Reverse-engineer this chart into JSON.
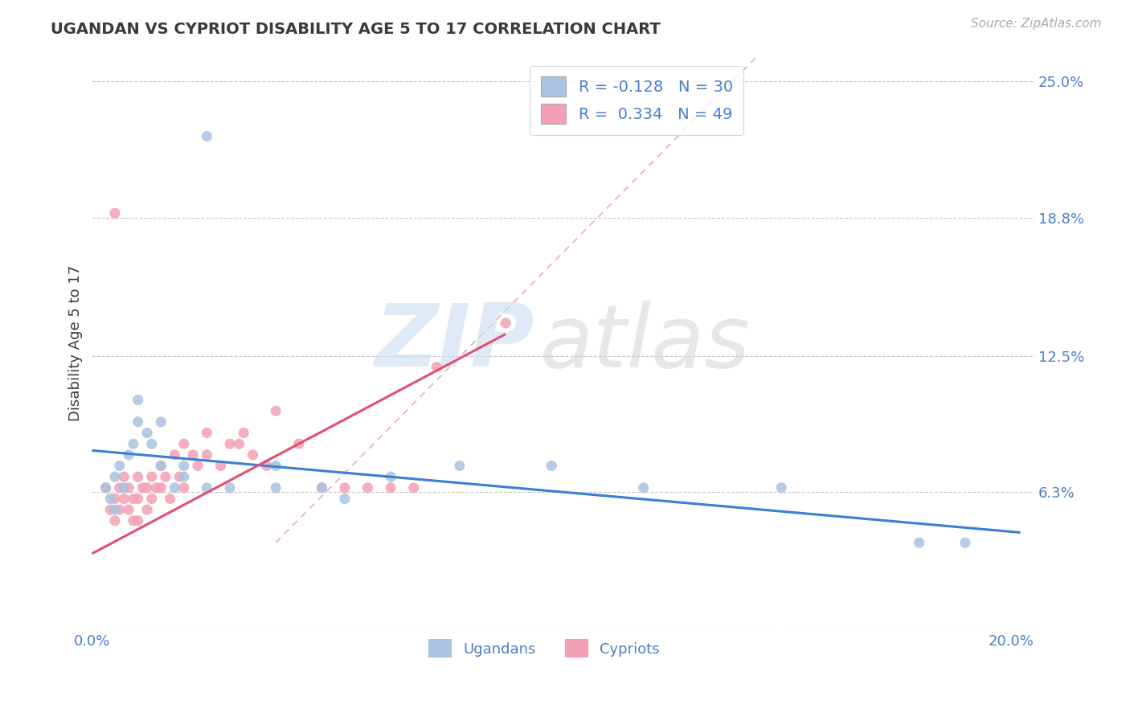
{
  "title": "UGANDAN VS CYPRIOT DISABILITY AGE 5 TO 17 CORRELATION CHART",
  "source": "Source: ZipAtlas.com",
  "ylabel": "Disability Age 5 to 17",
  "xlim": [
    0.0,
    0.205
  ],
  "ylim": [
    0.0,
    0.262
  ],
  "yticks": [
    0.0,
    0.063,
    0.125,
    0.188,
    0.25
  ],
  "ytick_labels": [
    "",
    "6.3%",
    "12.5%",
    "18.8%",
    "25.0%"
  ],
  "xticks": [
    0.0,
    0.05,
    0.1,
    0.15,
    0.2
  ],
  "xtick_labels": [
    "0.0%",
    "",
    "",
    "",
    "20.0%"
  ],
  "bg_color": "#ffffff",
  "grid_color": "#c8c8c8",
  "uganda_color": "#a8c4e0",
  "cypriot_color": "#f4a0b4",
  "uganda_line_color": "#3a7fd4",
  "cypriot_line_color": "#e05070",
  "diag_line_color": "#e0a0b0",
  "text_color": "#3a3a3a",
  "blue_label_color": "#4a7fc8",
  "title_fontsize": 14,
  "tick_fontsize": 13,
  "ylabel_fontsize": 13,
  "ugandans_x": [
    0.003,
    0.004,
    0.005,
    0.005,
    0.006,
    0.007,
    0.008,
    0.009,
    0.01,
    0.01,
    0.012,
    0.013,
    0.015,
    0.015,
    0.018,
    0.02,
    0.02,
    0.025,
    0.03,
    0.04,
    0.04,
    0.05,
    0.055,
    0.065,
    0.08,
    0.1,
    0.12,
    0.15,
    0.18,
    0.19
  ],
  "ugandans_y": [
    0.065,
    0.06,
    0.07,
    0.055,
    0.075,
    0.065,
    0.08,
    0.085,
    0.095,
    0.105,
    0.09,
    0.085,
    0.095,
    0.075,
    0.065,
    0.07,
    0.075,
    0.065,
    0.065,
    0.075,
    0.065,
    0.065,
    0.06,
    0.07,
    0.075,
    0.075,
    0.065,
    0.065,
    0.04,
    0.04
  ],
  "cypriots_x": [
    0.003,
    0.004,
    0.005,
    0.005,
    0.006,
    0.006,
    0.007,
    0.007,
    0.008,
    0.008,
    0.009,
    0.009,
    0.01,
    0.01,
    0.01,
    0.011,
    0.012,
    0.012,
    0.013,
    0.013,
    0.014,
    0.015,
    0.015,
    0.016,
    0.017,
    0.018,
    0.019,
    0.02,
    0.02,
    0.022,
    0.023,
    0.025,
    0.025,
    0.028,
    0.03,
    0.032,
    0.033,
    0.035,
    0.038,
    0.04,
    0.045,
    0.05,
    0.055,
    0.06,
    0.065,
    0.07,
    0.075,
    0.005,
    0.09
  ],
  "cypriots_y": [
    0.065,
    0.055,
    0.06,
    0.05,
    0.065,
    0.055,
    0.07,
    0.06,
    0.065,
    0.055,
    0.06,
    0.05,
    0.07,
    0.06,
    0.05,
    0.065,
    0.065,
    0.055,
    0.07,
    0.06,
    0.065,
    0.075,
    0.065,
    0.07,
    0.06,
    0.08,
    0.07,
    0.085,
    0.065,
    0.08,
    0.075,
    0.09,
    0.08,
    0.075,
    0.085,
    0.085,
    0.09,
    0.08,
    0.075,
    0.1,
    0.085,
    0.065,
    0.065,
    0.065,
    0.065,
    0.065,
    0.12,
    0.19,
    0.14
  ],
  "uganda_outlier_x": [
    0.025
  ],
  "uganda_outlier_y": [
    0.225
  ],
  "cypriot_outlier_x": [
    0.005
  ],
  "cypriot_outlier_y": [
    0.19
  ]
}
